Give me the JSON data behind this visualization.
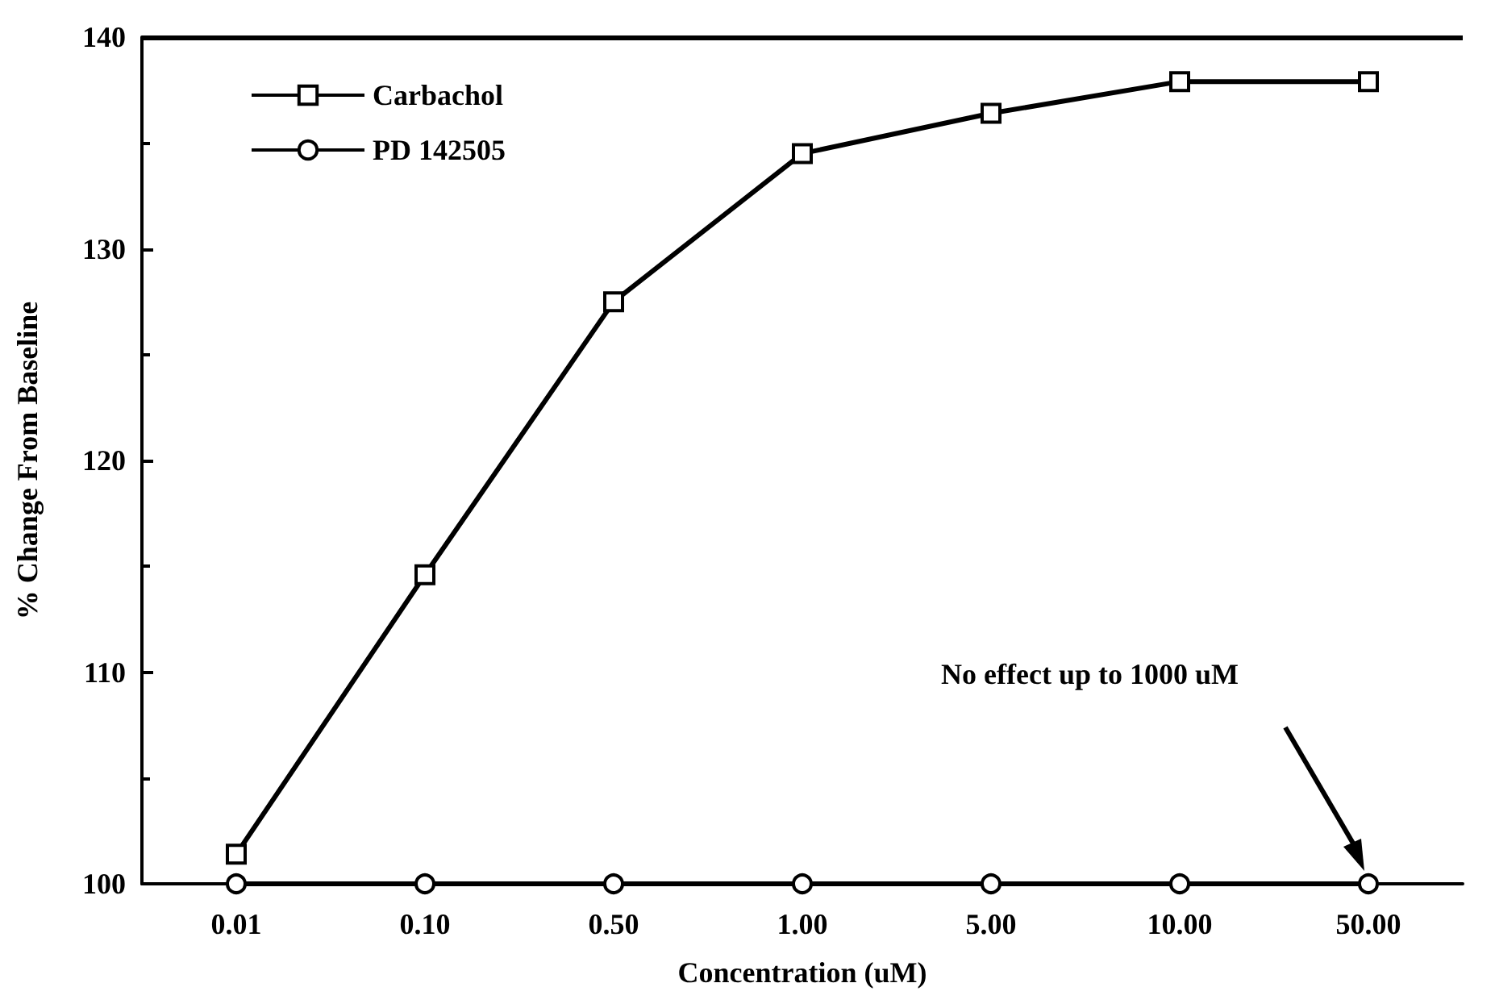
{
  "chart_data": {
    "type": "line",
    "xlabel": "Concentration (uM)",
    "ylabel": "% Change From Baseline",
    "categories": [
      "0.01",
      "0.10",
      "0.50",
      "1.00",
      "5.00",
      "10.00",
      "50.00"
    ],
    "series": [
      {
        "name": "Carbachol",
        "color": "#000000",
        "marker": "square",
        "values": [
          101.4,
          114.6,
          127.5,
          134.5,
          136.4,
          137.9,
          137.9
        ]
      },
      {
        "name": "PD 142505",
        "color": "#000000",
        "marker": "circle",
        "values": [
          100,
          100,
          100,
          100,
          100,
          100,
          100
        ]
      }
    ],
    "ylim": [
      100,
      140
    ],
    "yticks": [
      100,
      110,
      120,
      130,
      140
    ],
    "grid": false,
    "legend": "top left",
    "line_style": "solid",
    "annotations": [
      "No effect up to 1000 uM"
    ]
  }
}
